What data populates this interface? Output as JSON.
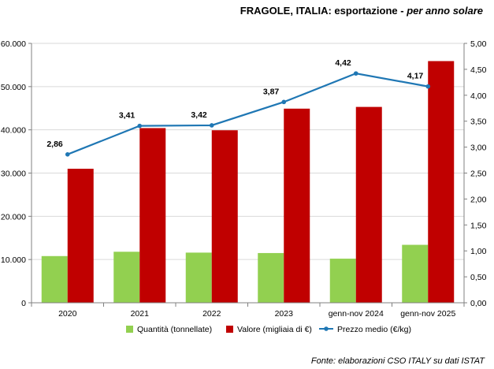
{
  "header": {
    "title_main": "FRAGOLE, ITALIA: esportazione -",
    "title_sub": "per anno solare"
  },
  "source": "Fonte: elaborazioni CSO ITALY su dati ISTAT",
  "chart_data": {
    "type": "bar",
    "title": "FRAGOLE, ITALIA: esportazione - per anno solare",
    "categories": [
      "2020",
      "2021",
      "2022",
      "2023",
      "genn-nov 2024",
      "genn-nov 2025"
    ],
    "series": [
      {
        "name": "Quantità (tonnellate)",
        "type": "bar",
        "axis": "left",
        "color": "#92d050",
        "values": [
          10800,
          11800,
          11600,
          11500,
          10200,
          13400
        ]
      },
      {
        "name": "Valore (migliaia di €)",
        "type": "bar",
        "axis": "left",
        "color": "#c00000",
        "values": [
          31000,
          40400,
          39900,
          44900,
          45300,
          55900
        ]
      },
      {
        "name": "Prezzo medio (€/kg)",
        "type": "line",
        "axis": "right",
        "color": "#1f77b4",
        "values": [
          2.86,
          3.41,
          3.42,
          3.87,
          4.42,
          4.17
        ],
        "labels": [
          "2,86",
          "3,41",
          "3,42",
          "3,87",
          "4,42",
          "4,17"
        ]
      }
    ],
    "y_left": {
      "ylim": [
        0,
        60000
      ],
      "ticks": [
        0,
        10000,
        20000,
        30000,
        40000,
        50000,
        60000
      ],
      "tick_labels": [
        "0",
        "10.000",
        "20.000",
        "30.000",
        "40.000",
        "50.000",
        "60.000"
      ]
    },
    "y_right": {
      "ylim": [
        0,
        5
      ],
      "ticks": [
        0,
        0.5,
        1,
        1.5,
        2,
        2.5,
        3,
        3.5,
        4,
        4.5,
        5
      ],
      "tick_labels": [
        "0,00",
        "0,50",
        "1,00",
        "1,50",
        "2,00",
        "2,50",
        "3,00",
        "3,50",
        "4,00",
        "4,50",
        "5,00"
      ]
    },
    "grid": true,
    "legend": "bottom"
  }
}
